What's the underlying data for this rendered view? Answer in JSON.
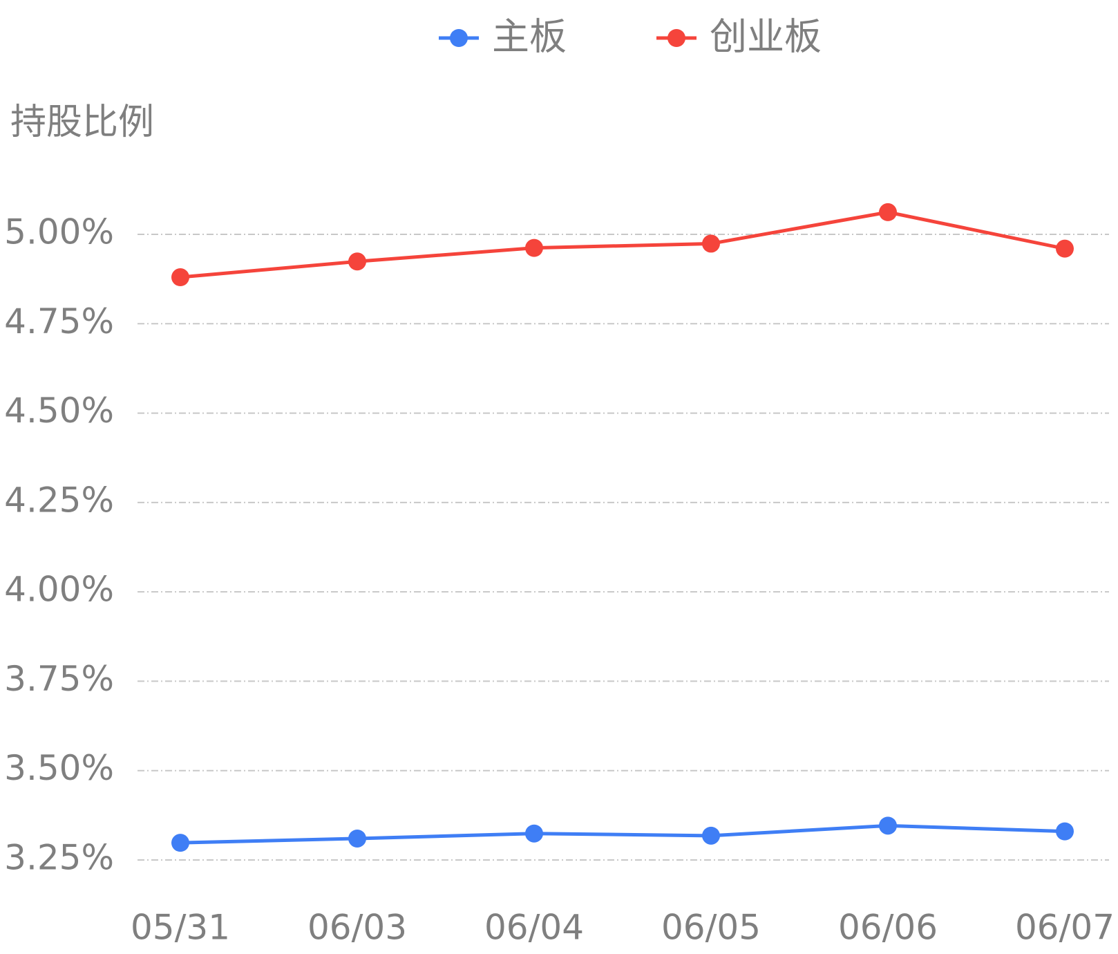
{
  "chart_data": {
    "type": "line",
    "y_axis_label": "持股比例",
    "categories": [
      "05/31",
      "06/03",
      "06/04",
      "06/05",
      "06/06",
      "06/07"
    ],
    "series": [
      {
        "name": "主板",
        "color": "#3f7ef5",
        "values": [
          3.298,
          3.31,
          3.324,
          3.318,
          3.346,
          3.33
        ]
      },
      {
        "name": "创业板",
        "color": "#f5443b",
        "values": [
          4.88,
          4.924,
          4.962,
          4.974,
          5.062,
          4.96
        ]
      }
    ],
    "ylim": [
      3.25,
      5.25
    ],
    "yticks": [
      {
        "value": 3.25,
        "label": "3.25%"
      },
      {
        "value": 3.5,
        "label": "3.50%"
      },
      {
        "value": 3.75,
        "label": "3.75%"
      },
      {
        "value": 4,
        "label": "4.00%"
      },
      {
        "value": 4.25,
        "label": "4.25%"
      },
      {
        "value": 4.5,
        "label": "4.50%"
      },
      {
        "value": 4.75,
        "label": "4.75%"
      },
      {
        "value": 5,
        "label": "5.00%"
      }
    ],
    "grid": true
  }
}
